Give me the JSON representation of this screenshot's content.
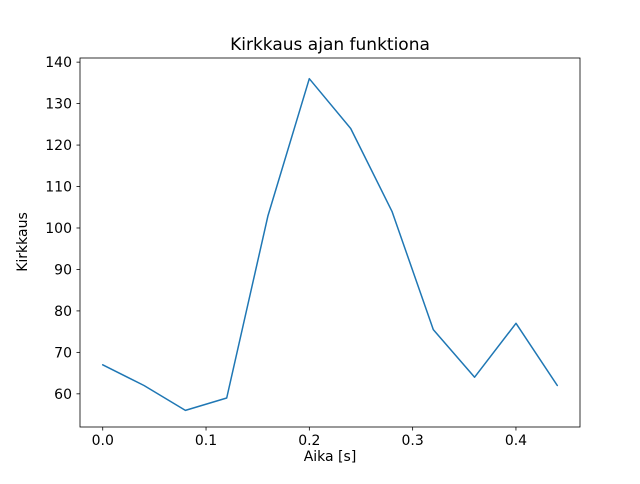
{
  "chart_data": {
    "type": "line",
    "title": "Kirkkaus ajan funktiona",
    "xlabel": "Aika [s]",
    "ylabel": "Kirkkaus",
    "x": [
      0.0,
      0.04,
      0.08,
      0.12,
      0.16,
      0.2,
      0.24,
      0.28,
      0.32,
      0.36,
      0.4,
      0.44
    ],
    "y": [
      67,
      62,
      56,
      59,
      103,
      136,
      124,
      104,
      75.5,
      64,
      77,
      62
    ],
    "xticks": [
      0.0,
      0.1,
      0.2,
      0.3,
      0.4
    ],
    "xtick_labels": [
      "0.0",
      "0.1",
      "0.2",
      "0.3",
      "0.4"
    ],
    "yticks": [
      60,
      70,
      80,
      90,
      100,
      110,
      120,
      130,
      140
    ],
    "ytick_labels": [
      "60",
      "70",
      "80",
      "90",
      "100",
      "110",
      "120",
      "130",
      "140"
    ],
    "xlim": [
      -0.022,
      0.462
    ],
    "ylim": [
      52,
      141
    ],
    "line_color": "#1f77b4",
    "spine_color": "#000000",
    "background_color": "#ffffff",
    "grid": false,
    "legend": "none"
  }
}
